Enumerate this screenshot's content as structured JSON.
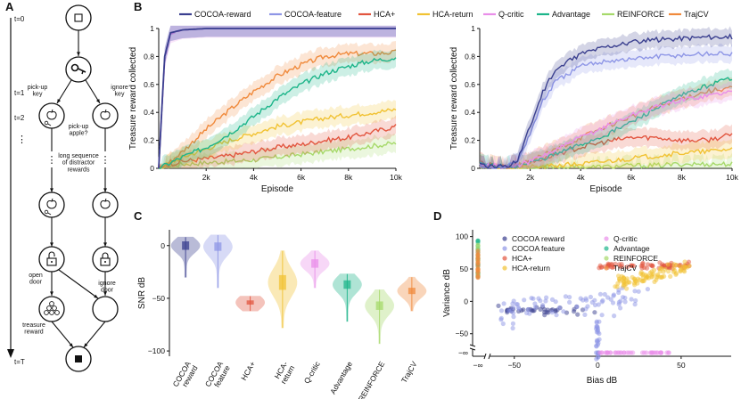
{
  "panel_letters": [
    "A",
    "B",
    "C",
    "D"
  ],
  "colors": {
    "cocoa_reward": "#3a3f8f",
    "cocoa_feature": "#8e96e6",
    "hca_plus": "#e2553f",
    "hca_return": "#f1c232",
    "q_critic": "#e98ee9",
    "advantage": "#1db58a",
    "reinforce": "#a6d96a",
    "trajcv": "#f08a3c"
  },
  "diagram": {
    "timeline": {
      "top": "t=0",
      "t1": "t=1",
      "t2": "t=2",
      "dots": "⋮",
      "bottom": "t=T"
    },
    "labels": {
      "pickup_key": "pick-up\nkey",
      "ignore_key": "ignore\nkey",
      "pickup_apple": "pick-up\napple?",
      "long_seq": "long sequence\nof distractor\nrewards",
      "open_door": "open\ndoor",
      "ignore_door": "ignore\ndoor",
      "treasure": "treasure\nreward"
    }
  },
  "legend_B": [
    "COCOA-reward",
    "COCOA-feature",
    "HCA+",
    "HCA-return",
    "Q-critic",
    "Advantage",
    "REINFORCE",
    "TrajCV"
  ],
  "chart_data": [
    {
      "panel": "B-left",
      "type": "line",
      "xlabel": "Episode",
      "ylabel": "Treasure reward collected",
      "xlim": [
        0,
        10000
      ],
      "ylim": [
        0,
        1
      ],
      "xticks": [
        "2k",
        "4k",
        "6k",
        "8k",
        "10k"
      ],
      "yticks": [
        "0",
        "0.2",
        "0.4",
        "0.6",
        "0.8",
        "1"
      ],
      "x": [
        0,
        250,
        500,
        1000,
        2000,
        3000,
        4000,
        5000,
        6000,
        7000,
        8000,
        9000,
        10000
      ],
      "series": [
        {
          "name": "COCOA-reward",
          "key": "cocoa_reward",
          "values": [
            0.0,
            0.8,
            0.97,
            0.99,
            1.0,
            1.0,
            1.0,
            1.0,
            1.0,
            1.0,
            1.0,
            1.0,
            1.0
          ]
        },
        {
          "name": "COCOA-feature",
          "key": "cocoa_feature",
          "values": [
            0.0,
            0.8,
            0.97,
            0.99,
            1.0,
            1.0,
            1.0,
            1.0,
            1.0,
            1.0,
            1.0,
            1.0,
            1.0
          ]
        },
        {
          "name": "HCA+",
          "key": "hca_plus",
          "values": [
            0.0,
            0.02,
            0.03,
            0.05,
            0.07,
            0.09,
            0.12,
            0.15,
            0.17,
            0.2,
            0.22,
            0.26,
            0.3
          ]
        },
        {
          "name": "HCA-return",
          "key": "hca_return",
          "values": [
            0.0,
            0.02,
            0.04,
            0.08,
            0.14,
            0.2,
            0.25,
            0.3,
            0.33,
            0.36,
            0.38,
            0.4,
            0.42
          ]
        },
        {
          "name": "Q-critic",
          "key": "q_critic",
          "values": [
            0.0,
            0.78,
            0.96,
            0.99,
            1.0,
            1.0,
            1.0,
            1.0,
            1.0,
            1.0,
            1.0,
            1.0,
            1.0
          ]
        },
        {
          "name": "Advantage",
          "key": "advantage",
          "values": [
            0.0,
            0.02,
            0.04,
            0.08,
            0.15,
            0.25,
            0.37,
            0.5,
            0.6,
            0.68,
            0.73,
            0.77,
            0.79
          ]
        },
        {
          "name": "REINFORCE",
          "key": "reinforce",
          "values": [
            0.0,
            0.01,
            0.02,
            0.03,
            0.04,
            0.05,
            0.06,
            0.08,
            0.1,
            0.12,
            0.14,
            0.16,
            0.18
          ]
        },
        {
          "name": "TrajCV",
          "key": "trajcv",
          "values": [
            0.0,
            0.02,
            0.05,
            0.12,
            0.28,
            0.42,
            0.55,
            0.66,
            0.74,
            0.8,
            0.82,
            0.82,
            0.83
          ]
        }
      ]
    },
    {
      "panel": "B-right",
      "type": "line",
      "xlabel": "Episode",
      "ylabel": "Treasure reward collected",
      "xlim": [
        0,
        10000
      ],
      "ylim": [
        0,
        1
      ],
      "xticks": [
        "2k",
        "4k",
        "6k",
        "8k",
        "10k"
      ],
      "yticks": [
        "0",
        "0.2",
        "0.4",
        "0.6",
        "0.8",
        "1"
      ],
      "x": [
        0,
        500,
        1000,
        1500,
        2000,
        2500,
        3000,
        4000,
        5000,
        6000,
        7000,
        8000,
        9000,
        10000
      ],
      "series": [
        {
          "name": "COCOA-reward",
          "key": "cocoa_reward",
          "values": [
            0.02,
            0.01,
            0.01,
            0.06,
            0.3,
            0.55,
            0.7,
            0.82,
            0.87,
            0.9,
            0.92,
            0.93,
            0.94,
            0.94
          ]
        },
        {
          "name": "COCOA-feature",
          "key": "cocoa_feature",
          "values": [
            0.02,
            0.01,
            0.01,
            0.05,
            0.25,
            0.48,
            0.62,
            0.73,
            0.77,
            0.78,
            0.8,
            0.81,
            0.82,
            0.82
          ]
        },
        {
          "name": "HCA+",
          "key": "hca_plus",
          "values": [
            0.04,
            0.02,
            0.01,
            0.02,
            0.04,
            0.07,
            0.1,
            0.15,
            0.19,
            0.22,
            0.22,
            0.2,
            0.2,
            0.24
          ]
        },
        {
          "name": "HCA-return",
          "key": "hca_return",
          "values": [
            0.02,
            0.01,
            0.0,
            0.0,
            0.01,
            0.01,
            0.02,
            0.03,
            0.05,
            0.07,
            0.09,
            0.11,
            0.12,
            0.14
          ]
        },
        {
          "name": "Q-critic",
          "key": "q_critic",
          "values": [
            0.03,
            0.02,
            0.01,
            0.02,
            0.05,
            0.09,
            0.13,
            0.22,
            0.3,
            0.38,
            0.44,
            0.49,
            0.52,
            0.55
          ]
        },
        {
          "name": "Advantage",
          "key": "advantage",
          "values": [
            0.03,
            0.02,
            0.01,
            0.02,
            0.04,
            0.07,
            0.1,
            0.17,
            0.24,
            0.33,
            0.43,
            0.52,
            0.59,
            0.65
          ]
        },
        {
          "name": "REINFORCE",
          "key": "reinforce",
          "values": [
            0.02,
            0.01,
            0.0,
            0.0,
            0.0,
            0.0,
            0.01,
            0.01,
            0.01,
            0.02,
            0.02,
            0.03,
            0.03,
            0.03
          ]
        },
        {
          "name": "TrajCV",
          "key": "trajcv",
          "values": [
            0.03,
            0.02,
            0.01,
            0.02,
            0.05,
            0.09,
            0.13,
            0.22,
            0.3,
            0.37,
            0.44,
            0.5,
            0.55,
            0.58
          ]
        }
      ]
    },
    {
      "panel": "C",
      "type": "violin",
      "ylabel": "SNR dB",
      "ylim": [
        -105,
        15
      ],
      "yticks": [
        0,
        -50,
        -100
      ],
      "categories": [
        "COCOA\nreward",
        "COCOA\nfeature",
        "HCA+",
        "HCA-\nreturn",
        "Q-critic",
        "Advantage",
        "REINFORCE",
        "TrajCV"
      ],
      "series": [
        {
          "key": "cocoa_reward",
          "median": 0,
          "q1": -4,
          "q3": 4,
          "min": -30,
          "max": 8
        },
        {
          "key": "cocoa_feature",
          "median": -1,
          "q1": -5,
          "q3": 3,
          "min": -40,
          "max": 10
        },
        {
          "key": "hca_plus",
          "median": -54,
          "q1": -56,
          "q3": -52,
          "min": -62,
          "max": -48
        },
        {
          "key": "hca_return",
          "median": -35,
          "q1": -42,
          "q3": -28,
          "min": -78,
          "max": -5
        },
        {
          "key": "q_critic",
          "median": -17,
          "q1": -21,
          "q3": -13,
          "min": -40,
          "max": -5
        },
        {
          "key": "advantage",
          "median": -37,
          "q1": -41,
          "q3": -33,
          "min": -72,
          "max": -27
        },
        {
          "key": "reinforce",
          "median": -57,
          "q1": -61,
          "q3": -53,
          "min": -93,
          "max": -42
        },
        {
          "key": "trajcv",
          "median": -43,
          "q1": -46,
          "q3": -40,
          "min": -62,
          "max": -30
        }
      ]
    },
    {
      "panel": "D",
      "type": "scatter",
      "xlabel": "Bias dB",
      "ylabel": "Variance dB",
      "xlim": [
        -75,
        80
      ],
      "ylim": [
        -30,
        105
      ],
      "xticks": [
        -50,
        0,
        50
      ],
      "yticks": [
        100,
        50,
        0,
        -50
      ],
      "xtick_neg_inf": "−∞",
      "ytick_neg_inf": "−∞",
      "legend": [
        "COCOA reward",
        "COCOA feature",
        "HCA+",
        "HCA-return",
        "Q-critic",
        "Advantage",
        "REINFORCE",
        "TrajCV"
      ],
      "clusters": [
        {
          "key": "cocoa_reward",
          "x_range": [
            -60,
            0
          ],
          "y_center": -14,
          "y_spread": 6,
          "n": 40
        },
        {
          "key": "cocoa_feature",
          "x_range": [
            -60,
            30
          ],
          "y_center": -5,
          "y_spread": 18,
          "n": 80
        },
        {
          "key": "cocoa_feature",
          "x_range": [
            -1,
            1
          ],
          "y_range": [
            -100,
            -20
          ],
          "n": 30
        },
        {
          "key": "hca_plus",
          "x_range": [
            0,
            55
          ],
          "y_center": 55,
          "y_spread": 4,
          "n": 70
        },
        {
          "key": "hca_return",
          "x_range": [
            10,
            55
          ],
          "y_center": 38,
          "y_spread": 10,
          "n": 90
        },
        {
          "key": "q_critic",
          "x_range": [
            0,
            45
          ],
          "y_center": -95,
          "y_spread": 1,
          "n": 40
        },
        {
          "key": "advantage",
          "x_range": [
            -74,
            -72
          ],
          "y_range": [
            30,
            95
          ],
          "n": 25
        },
        {
          "key": "reinforce",
          "x_range": [
            -74,
            -72
          ],
          "y_range": [
            40,
            90
          ],
          "n": 10
        },
        {
          "key": "trajcv",
          "x_range": [
            -74,
            -72
          ],
          "y_range": [
            35,
            80
          ],
          "n": 25
        }
      ]
    }
  ]
}
